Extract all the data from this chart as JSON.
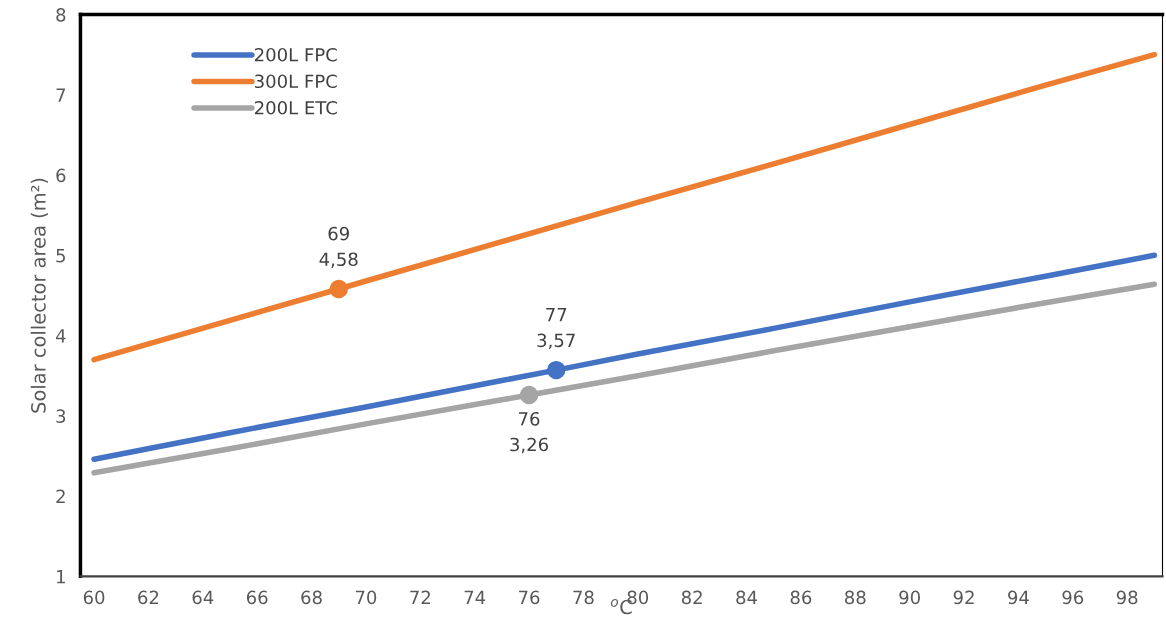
{
  "chart_data": {
    "type": "line",
    "xlabel": "$^{o}$C",
    "ylabel": "Solar collector area (m²)",
    "xlim": [
      59.5,
      99.3
    ],
    "xticks": [
      60,
      62,
      64,
      66,
      68,
      70,
      72,
      74,
      76,
      78,
      80,
      82,
      84,
      86,
      88,
      90,
      92,
      94,
      96,
      98
    ],
    "ylim": [
      1,
      8
    ],
    "yticks": [
      1,
      2,
      3,
      4,
      5,
      6,
      7,
      8
    ],
    "grid": false,
    "legend": "top left",
    "marker": "none",
    "line_style": "solid",
    "series": [
      {
        "name": "200L FPC",
        "color": "#4472c4",
        "x": [
          60,
          65,
          70,
          75,
          77,
          80,
          85,
          90,
          95,
          99
        ],
        "values": [
          2.46,
          2.79,
          3.11,
          3.44,
          3.57,
          3.77,
          4.09,
          4.42,
          4.74,
          5.0
        ]
      },
      {
        "name": "300L FPC",
        "color": "#ed7d31",
        "x": [
          60,
          65,
          69,
          70,
          75,
          80,
          85,
          90,
          95,
          99
        ],
        "values": [
          3.7,
          4.19,
          4.58,
          4.68,
          5.17,
          5.66,
          6.14,
          6.63,
          7.12,
          7.5
        ]
      },
      {
        "name": "200L ETC",
        "color": "#a5a5a5",
        "x": [
          60,
          65,
          70,
          75,
          76,
          80,
          85,
          90,
          95,
          99
        ],
        "values": [
          2.29,
          2.59,
          2.9,
          3.2,
          3.26,
          3.5,
          3.81,
          4.11,
          4.41,
          4.64
        ]
      },
      {
        "type": "scatter",
        "color": "#4472c4",
        "marker": "circle",
        "x": [
          77
        ],
        "values": [
          3.57
        ]
      },
      {
        "type": "scatter",
        "color": "#ed7d31",
        "marker": "circle",
        "x": [
          69
        ],
        "values": [
          4.58
        ]
      },
      {
        "type": "scatter",
        "color": "#a5a5a5",
        "marker": "circle",
        "x": [
          76
        ],
        "values": [
          3.26
        ]
      }
    ],
    "annotations": [
      {
        "text": "69\n4,58",
        "x": 69,
        "y": 4.58
      },
      {
        "text": "77\n3,57",
        "x": 77,
        "y": 3.57
      },
      {
        "text": "76\n3,26",
        "x": 76,
        "y": 3.26
      }
    ]
  }
}
